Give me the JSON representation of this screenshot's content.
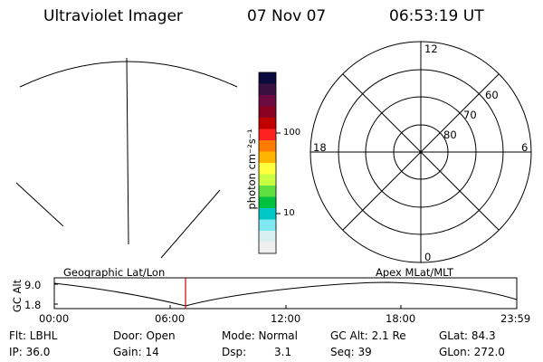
{
  "header": {
    "title": "Ultraviolet Imager",
    "date": "07 Nov 07",
    "time": "06:53:19 UT"
  },
  "colorbar": {
    "label": "photon cm⁻²s⁻¹",
    "ticks": [
      "100",
      "10"
    ],
    "colors": [
      "#0a0a3c",
      "#3a1040",
      "#6a0a40",
      "#8a0020",
      "#c00000",
      "#ff2020",
      "#ff7a00",
      "#ffb400",
      "#ffff40",
      "#c8ff40",
      "#60e040",
      "#00c040",
      "#00c8c8",
      "#80e8f0",
      "#d8f0f0",
      "#f0f0f0"
    ]
  },
  "polar": {
    "hour_labels": {
      "top": "12",
      "bottom": "0",
      "left": "18",
      "right": "6"
    },
    "lat_labels": [
      "60",
      "70",
      "80"
    ]
  },
  "timeline": {
    "left_title": "Geographic Lat/Lon",
    "right_title": "Apex MLat/MLT",
    "ylabel": "GC Alt",
    "y_ticks": [
      "9.0",
      "1.8"
    ],
    "x_ticks": [
      "00:00",
      "06:00",
      "12:00",
      "18:00",
      "23:59"
    ]
  },
  "info": {
    "flt": "Flt: LBHL",
    "ip": "IP: 36.0",
    "door": "Door: Open",
    "gain": "Gain: 14",
    "mode": "Mode: Normal",
    "dsp_label": "Dsp:",
    "dsp_value": "3.1",
    "gc_alt": "GC Alt: 2.1 Re",
    "seq": "Seq: 39",
    "glat": "GLat: 84.3",
    "glon": "GLon: 272.0"
  }
}
